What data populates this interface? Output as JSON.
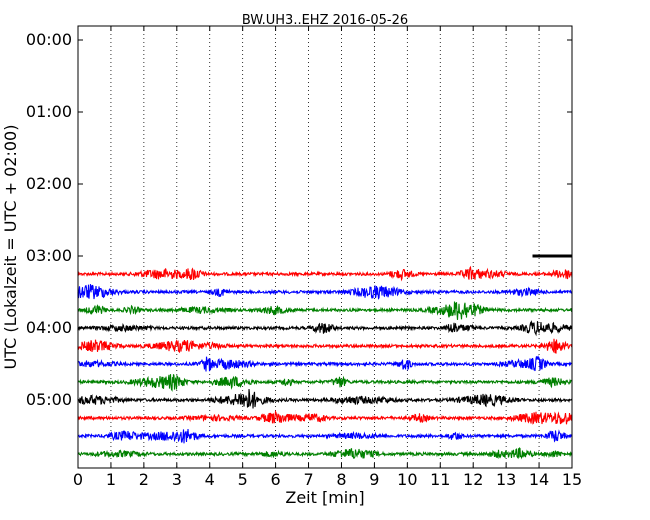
{
  "chart_data": {
    "type": "line",
    "title": "BW.UH3..EHZ 2016-05-26",
    "xlabel": "Zeit  [min]",
    "ylabel": "UTC (Lokalzeit = UTC + 02:00)",
    "xlim": [
      0,
      15
    ],
    "x_ticks": [
      "0",
      "1",
      "2",
      "3",
      "4",
      "5",
      "6",
      "7",
      "8",
      "9",
      "10",
      "11",
      "12",
      "13",
      "14",
      "15"
    ],
    "y_ticks": [
      "00:00",
      "01:00",
      "02:00",
      "03:00",
      "04:00",
      "05:00"
    ],
    "x_grid": "dotted vertical",
    "trace_colors": [
      "#ff0000",
      "#0000ff",
      "#008000",
      "#000000"
    ],
    "traces": [
      {
        "start": "03:00",
        "x_start": 13.8,
        "x_end": 15,
        "color": "#000000"
      },
      {
        "start": "03:15",
        "x_start": 0,
        "x_end": 15,
        "color": "#ff0000"
      },
      {
        "start": "03:30",
        "x_start": 0,
        "x_end": 15,
        "color": "#0000ff"
      },
      {
        "start": "03:45",
        "x_start": 0,
        "x_end": 15,
        "color": "#008000"
      },
      {
        "start": "04:00",
        "x_start": 0,
        "x_end": 15,
        "color": "#000000"
      },
      {
        "start": "04:15",
        "x_start": 0,
        "x_end": 15,
        "color": "#ff0000"
      },
      {
        "start": "04:30",
        "x_start": 0,
        "x_end": 15,
        "color": "#0000ff"
      },
      {
        "start": "04:45",
        "x_start": 0,
        "x_end": 15,
        "color": "#008000"
      },
      {
        "start": "05:00",
        "x_start": 0,
        "x_end": 15,
        "color": "#000000"
      },
      {
        "start": "05:15",
        "x_start": 0,
        "x_end": 15,
        "color": "#ff0000"
      },
      {
        "start": "05:30",
        "x_start": 0,
        "x_end": 15,
        "color": "#0000ff"
      },
      {
        "start": "05:45",
        "x_start": 0,
        "x_end": 15,
        "color": "#008000"
      }
    ]
  }
}
